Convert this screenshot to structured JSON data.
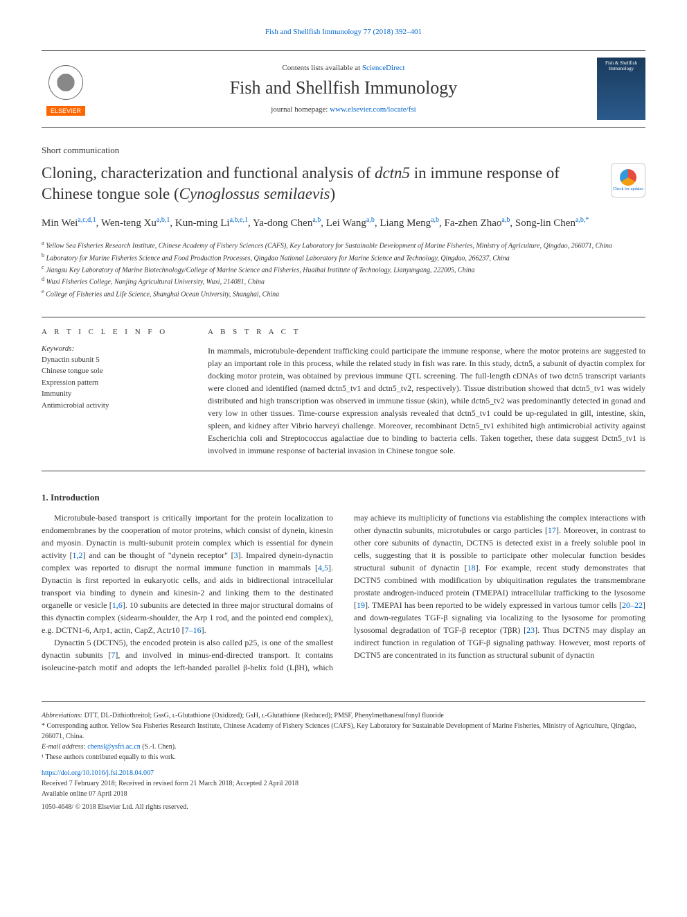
{
  "header": {
    "citation": "Fish and Shellfish Immunology 77 (2018) 392–401",
    "contents_prefix": "Contents lists available at ",
    "contents_link": "ScienceDirect",
    "journal_name": "Fish and Shellfish Immunology",
    "homepage_prefix": "journal homepage: ",
    "homepage_link": "www.elsevier.com/locate/fsi",
    "elsevier_label": "ELSEVIER",
    "cover_text": "Fish & Shellfish Immunology"
  },
  "article": {
    "type": "Short communication",
    "title_part1": "Cloning, characterization and functional analysis of ",
    "title_italic1": "dctn5",
    "title_part2": " in immune response of Chinese tongue sole (",
    "title_italic2": "Cynoglossus semilaevis",
    "title_part3": ")",
    "check_updates": "Check for updates"
  },
  "authors": {
    "list": "Min Wei",
    "a1_sup": "a,c,d,1",
    "a2": ", Wen-teng Xu",
    "a2_sup": "a,b,1",
    "a3": ", Kun-ming Li",
    "a3_sup": "a,b,e,1",
    "a4": ", Ya-dong Chen",
    "a4_sup": "a,b",
    "a5": ", Lei Wang",
    "a5_sup": "a,b",
    "a6": ", Liang Meng",
    "a6_sup": "a,b",
    "a7": ", Fa-zhen Zhao",
    "a7_sup": "a,b",
    "a8": ", Song-lin Chen",
    "a8_sup": "a,b,*"
  },
  "affiliations": {
    "a": "Yellow Sea Fisheries Research Institute, Chinese Academy of Fishery Sciences (CAFS), Key Laboratory for Sustainable Development of Marine Fisheries, Ministry of Agriculture, Qingdao, 266071, China",
    "b": "Laboratory for Marine Fisheries Science and Food Production Processes, Qingdao National Laboratory for Marine Science and Technology, Qingdao, 266237, China",
    "c": "Jiangsu Key Laboratory of Marine Biotechnology/College of Marine Science and Fisheries, Huaihai Institute of Technology, Lianyungang, 222005, China",
    "d": "Wuxi Fisheries College, Nanjing Agricultural University, Wuxi, 214081, China",
    "e": "College of Fisheries and Life Science, Shanghai Ocean University, Shanghai, China"
  },
  "info": {
    "heading": "A R T I C L E  I N F O",
    "keywords_label": "Keywords:",
    "keywords": [
      "Dynactin subunit 5",
      "Chinese tongue sole",
      "Expression pattern",
      "Immunity",
      "Antimicrobial activity"
    ]
  },
  "abstract": {
    "heading": "A B S T R A C T",
    "text": "In mammals, microtubule-dependent trafficking could participate the immune response, where the motor proteins are suggested to play an important role in this process, while the related study in fish was rare. In this study, dctn5, a subunit of dyactin complex for docking motor protein, was obtained by previous immune QTL screening. The full-length cDNAs of two dctn5 transcript variants were cloned and identified (named dctn5_tv1 and dctn5_tv2, respectively). Tissue distribution showed that dctn5_tv1 was widely distributed and high transcription was observed in immune tissue (skin), while dctn5_tv2 was predominantly detected in gonad and very low in other tissues. Time-course expression analysis revealed that dctn5_tv1 could be up-regulated in gill, intestine, skin, spleen, and kidney after Vibrio harveyi challenge. Moreover, recombinant Dctn5_tv1 exhibited high antimicrobial activity against Escherichia coli and Streptococcus agalactiae due to binding to bacteria cells. Taken together, these data suggest Dctn5_tv1 is involved in immune response of bacterial invasion in Chinese tongue sole."
  },
  "body": {
    "heading": "1. Introduction",
    "p1_part1": "Microtubule-based transport is critically important for the protein localization to endomembranes by the cooperation of motor proteins, which consist of dynein, kinesin and myosin. Dynactin is multi-subunit protein complex which is essential for dynein activity [",
    "p1_ref1": "1,2",
    "p1_part2": "] and can be thought of \"dynein receptor\" [",
    "p1_ref2": "3",
    "p1_part3": "]. Impaired dynein-dynactin complex was reported to disrupt the normal immune function in mammals [",
    "p1_ref3": "4,5",
    "p1_part4": "]. Dynactin is first reported in eukaryotic cells, and aids in bidirectional intracellular transport via binding to dynein and kinesin-2 and linking them to the destinated organelle or vesicle [",
    "p1_ref4": "1,6",
    "p1_part5": "]. 10 subunits are detected in three major structural domains of this dynactin complex (sidearm-shoulder, the Arp 1 rod, and the pointed end complex), e.g. DCTN1-6, Arp1, actin, CapZ, Actr10 [",
    "p1_ref5": "7–16",
    "p1_part6": "].",
    "p2_part1": "Dynactin 5 (DCTN5), the encoded protein is also called p25, is one of the smallest dynactin subunits [",
    "p2_ref1": "7",
    "p2_part2": "], and involved in minus-end-directed transport. It contains isoleucine-patch motif and adopts the left-handed parallel β-helix fold (LβH), which may achieve its multiplicity of functions via establishing the complex interactions with other dynactin subunits, microtubules or cargo particles [",
    "p2_ref2": "17",
    "p2_part3": "]. Moreover, in contrast to other core subunits of dynactin, DCTN5 is detected exist in a freely soluble pool in cells, suggesting that it is possible to participate other molecular function besides structural subunit of dynactin [",
    "p2_ref3": "18",
    "p2_part4": "]. For example, recent study demonstrates that DCTN5 combined with modification by ubiquitination regulates the transmembrane prostate androgen-induced protein (TMEPAI) intracellular trafficking to the lysosome [",
    "p2_ref4": "19",
    "p2_part5": "]. TMEPAI has been reported to be widely expressed in various tumor cells [",
    "p2_ref5": "20–22",
    "p2_part6": "] and down-regulates TGF-β signaling via localizing to the lysosome for promoting lysosomal degradation of TGF-β receptor (TβR) [",
    "p2_ref6": "23",
    "p2_part7": "]. Thus DCTN5 may display an indirect function in regulation of TGF-β signaling pathway. However, most reports of DCTN5 are concentrated in its function as structural subunit of dynactin"
  },
  "footer": {
    "abbrev_label": "Abbreviations:",
    "abbrev_text": " DTT, DL-Dithiothreitol; GssG, ʟ-Glutathione (Oxidized); GsH, ʟ-Glutathione (Reduced); PMSF, Phenylmethanesulfonyl fluoride",
    "corresponding": "* Corresponding author. Yellow Sea Fisheries Research Institute, Chinese Academy of Fishery Sciences (CAFS), Key Laboratory for Sustainable Development of Marine Fisheries, Ministry of Agriculture, Qingdao, 266071, China.",
    "email_label": "E-mail address: ",
    "email": "chensl@ysfri.ac.cn",
    "email_suffix": " (S.-l. Chen).",
    "contrib": "¹ These authors contributed equally to this work.",
    "doi": "https://doi.org/10.1016/j.fsi.2018.04.007",
    "received": "Received 7 February 2018; Received in revised form 21 March 2018; Accepted 2 April 2018",
    "available": "Available online 07 April 2018",
    "copyright": "1050-4648/ © 2018 Elsevier Ltd. All rights reserved."
  }
}
